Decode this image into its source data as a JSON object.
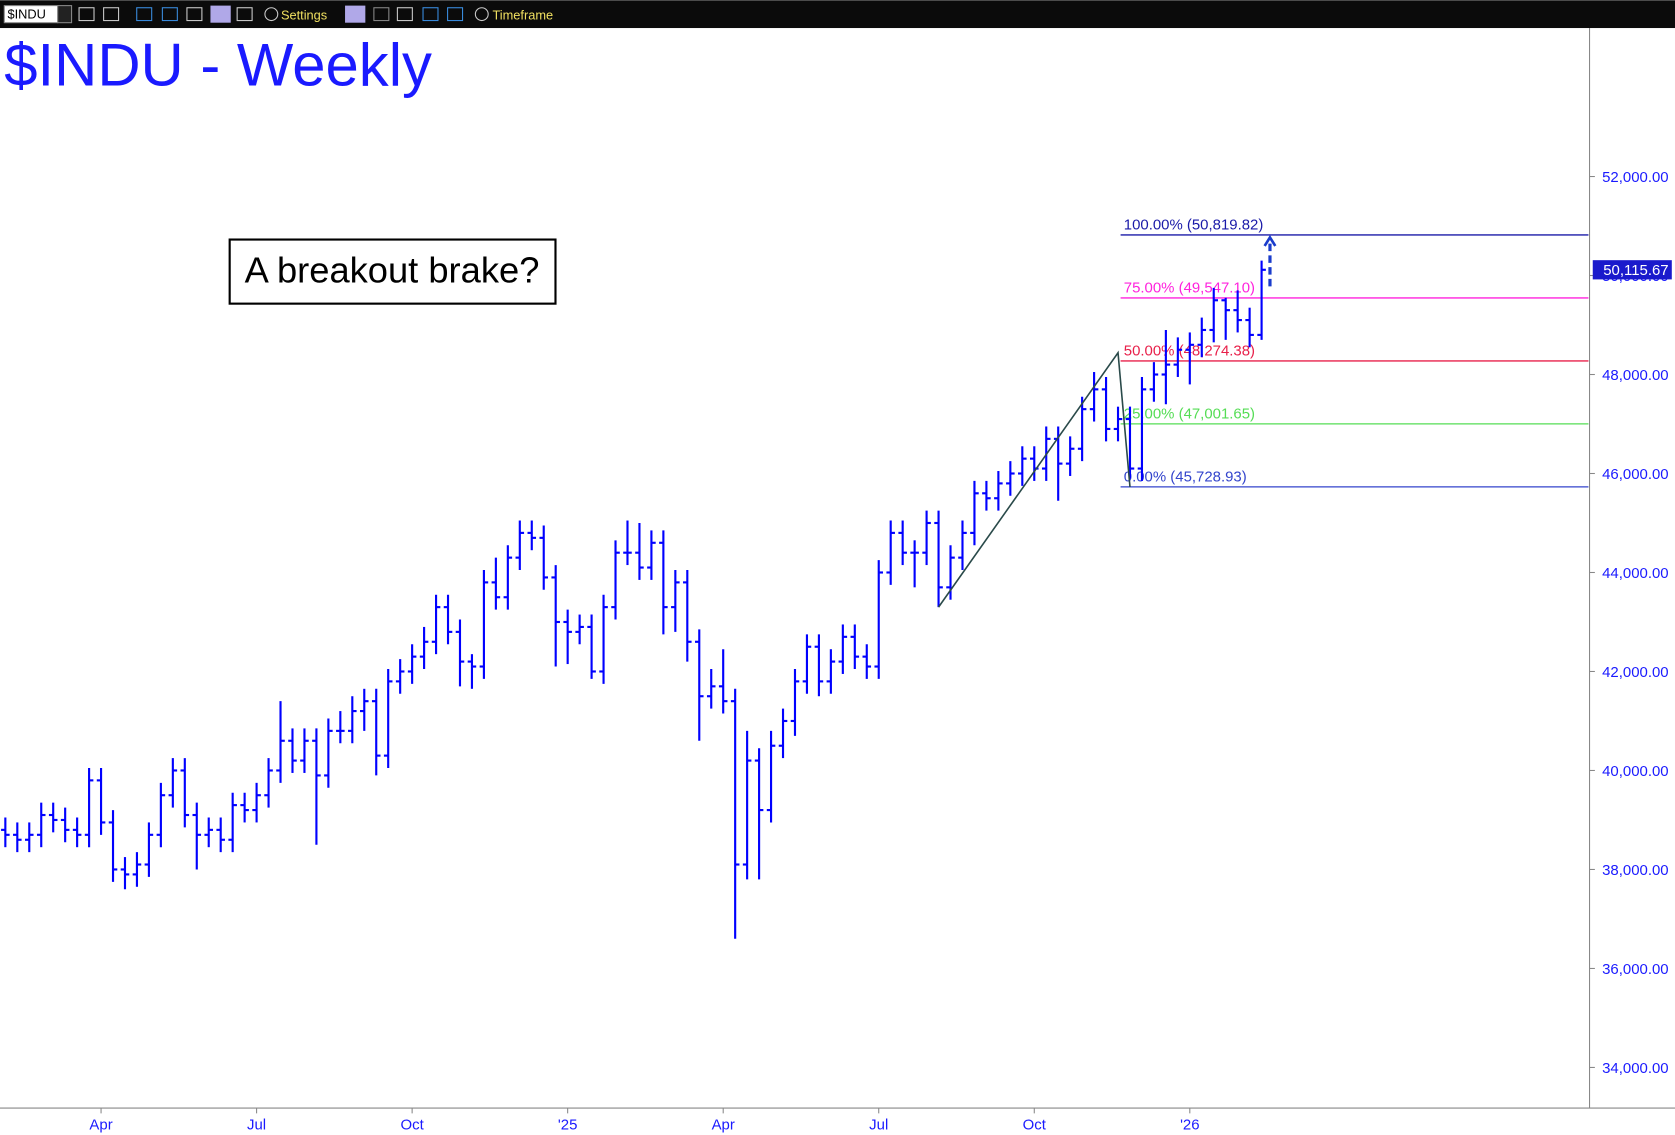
{
  "toolbar": {
    "symbol": "$INDU",
    "settings": "Settings",
    "timeframe": "Timeframe"
  },
  "chart_data": {
    "type": "ohlc",
    "title": "$INDU - Weekly",
    "annotation": "A breakout brake?",
    "color": "#0000ff",
    "categories": [
      null,
      null,
      null,
      null,
      null,
      null,
      null,
      null,
      "Apr",
      null,
      null,
      null,
      null,
      null,
      null,
      null,
      null,
      null,
      null,
      null,
      null,
      "Jul",
      null,
      null,
      null,
      null,
      null,
      null,
      null,
      null,
      null,
      null,
      null,
      null,
      "Oct",
      null,
      null,
      null,
      null,
      null,
      null,
      null,
      null,
      null,
      null,
      null,
      null,
      "'25",
      null,
      null,
      null,
      null,
      null,
      null,
      null,
      null,
      null,
      null,
      null,
      null,
      "Apr",
      null,
      null,
      null,
      null,
      null,
      null,
      null,
      null,
      null,
      null,
      null,
      null,
      "Jul",
      null,
      null,
      null,
      null,
      null,
      null,
      null,
      null,
      null,
      null,
      null,
      null,
      "Oct",
      null,
      null,
      null,
      null,
      null,
      null,
      null,
      null,
      null,
      null,
      null,
      null,
      "'26",
      null,
      null,
      null,
      null,
      null,
      null
    ],
    "open": [
      38800,
      38700,
      38600,
      38700,
      39100,
      39000,
      38800,
      38700,
      39800,
      38950,
      38000,
      37900,
      38100,
      38700,
      39500,
      40000,
      39100,
      38700,
      38800,
      38600,
      39300,
      39200,
      39500,
      40000,
      40600,
      40200,
      40600,
      39900,
      40800,
      40800,
      41200,
      41400,
      40300,
      41800,
      42000,
      42300,
      42600,
      43300,
      42800,
      42200,
      42100,
      43800,
      43500,
      44300,
      44800,
      44700,
      43900,
      43000,
      42800,
      42900,
      42000,
      43300,
      44400,
      44400,
      44100,
      44600,
      43300,
      43800,
      42600,
      41500,
      41700,
      41400,
      38100,
      40200,
      39200,
      40500,
      41000,
      41800,
      42500,
      41800,
      42200,
      42700,
      42300,
      42100,
      44000,
      44800,
      44400,
      44400,
      45000,
      43700,
      44300,
      44800,
      45600,
      45500,
      45800,
      46000,
      46300,
      46100,
      46700,
      46200,
      46500,
      47300,
      47700,
      46900,
      47100,
      46100,
      47700,
      48000,
      48200,
      48500,
      48600,
      48900,
      49500,
      49300,
      49100,
      48800
    ],
    "high": [
      39050,
      38950,
      38950,
      39350,
      39350,
      39250,
      39050,
      40050,
      40050,
      39200,
      38250,
      38350,
      38950,
      39750,
      40250,
      40250,
      39350,
      39050,
      39050,
      39550,
      39550,
      39750,
      40250,
      41400,
      40850,
      40850,
      40850,
      41050,
      41200,
      41500,
      41650,
      41650,
      42050,
      42250,
      42550,
      42900,
      43550,
      43550,
      43050,
      42350,
      44050,
      44300,
      44550,
      45050,
      45050,
      44950,
      44150,
      43250,
      43150,
      43150,
      43550,
      44650,
      45050,
      45000,
      44850,
      44850,
      44050,
      44050,
      42850,
      42050,
      42450,
      41650,
      40800,
      40450,
      40800,
      41250,
      42050,
      42750,
      42750,
      42450,
      42950,
      42950,
      42550,
      44250,
      45050,
      45050,
      44650,
      45250,
      45250,
      44550,
      45050,
      45850,
      45850,
      46050,
      46250,
      46550,
      46550,
      46950,
      46950,
      46750,
      47550,
      48050,
      47950,
      47350,
      47350,
      47950,
      48250,
      48900,
      48750,
      48850,
      49150,
      49750,
      49550,
      49700,
      49350,
      50300
    ],
    "low": [
      38450,
      38350,
      38350,
      38450,
      38750,
      38550,
      38450,
      38450,
      38700,
      37750,
      37600,
      37650,
      37850,
      38450,
      39250,
      38850,
      38000,
      38450,
      38350,
      38350,
      38950,
      38950,
      39250,
      39750,
      39950,
      39950,
      38500,
      39650,
      40550,
      40550,
      40800,
      39900,
      40050,
      41550,
      41750,
      42050,
      42350,
      42550,
      41700,
      41650,
      41850,
      43250,
      43250,
      44050,
      44450,
      43650,
      42100,
      42150,
      42550,
      41850,
      41750,
      43050,
      44150,
      43850,
      43850,
      42750,
      42800,
      42200,
      40600,
      41250,
      41150,
      36600,
      37800,
      37800,
      38950,
      40250,
      40700,
      41550,
      41500,
      41550,
      41950,
      42050,
      41850,
      41850,
      43750,
      44150,
      43700,
      44150,
      43300,
      43450,
      44050,
      44550,
      45250,
      45250,
      45550,
      45750,
      45850,
      45850,
      45450,
      45950,
      46250,
      47050,
      46650,
      46650,
      45900,
      45850,
      47450,
      47400,
      47950,
      47800,
      48350,
      48650,
      48700,
      48850,
      48550,
      48700
    ],
    "close": [
      38700,
      38600,
      38700,
      39100,
      39000,
      38800,
      38700,
      39800,
      38950,
      38000,
      37900,
      38100,
      38700,
      39500,
      40000,
      39100,
      38700,
      38800,
      38600,
      39300,
      39200,
      39500,
      40000,
      40600,
      40200,
      40600,
      39900,
      40800,
      40800,
      41200,
      41400,
      40300,
      41800,
      42000,
      42300,
      42600,
      43300,
      42800,
      42200,
      42100,
      43800,
      43500,
      44300,
      44800,
      44700,
      43900,
      43000,
      42800,
      42900,
      42000,
      43300,
      44400,
      44400,
      44100,
      44600,
      43300,
      43800,
      42600,
      41500,
      41700,
      41400,
      38100,
      40200,
      39200,
      40500,
      41000,
      41800,
      42500,
      41800,
      42200,
      42700,
      42300,
      42100,
      44000,
      44800,
      44400,
      44400,
      45000,
      43700,
      44300,
      44800,
      45600,
      45500,
      45800,
      46000,
      46300,
      46100,
      46700,
      46200,
      46500,
      47300,
      47700,
      46900,
      47100,
      46100,
      47700,
      48000,
      48200,
      48500,
      48600,
      48900,
      49500,
      49300,
      49100,
      48800,
      50115.67
    ],
    "ylim": [
      33180,
      55000
    ],
    "yticks": [
      {
        "value": 34000,
        "label": "34,000.00"
      },
      {
        "value": 36000,
        "label": "36,000.00"
      },
      {
        "value": 38000,
        "label": "38,000.00"
      },
      {
        "value": 40000,
        "label": "40,000.00"
      },
      {
        "value": 42000,
        "label": "42,000.00"
      },
      {
        "value": 44000,
        "label": "44,000.00"
      },
      {
        "value": 46000,
        "label": "46,000.00"
      },
      {
        "value": 48000,
        "label": "48,000.00"
      },
      {
        "value": 50000,
        "label": "50,000.00"
      },
      {
        "value": 52000,
        "label": "52,000.00"
      }
    ],
    "last_label": {
      "value": 50115.67,
      "label": "50,115.67"
    },
    "fib_levels": [
      {
        "value": 50819.82,
        "label": "100.00% (50,819.82)",
        "color": "#1a1aa8"
      },
      {
        "value": 49547.1,
        "label": "75.00% (49,547.10)",
        "color": "#ff22dd"
      },
      {
        "value": 48274.38,
        "label": "50.00% (48,274.38)",
        "color": "#e8204a"
      },
      {
        "value": 47001.65,
        "label": "25.00% (47,001.65)",
        "color": "#55dd55"
      },
      {
        "value": 45728.93,
        "label": "0.00% (45,728.93)",
        "color": "#3344cc"
      }
    ],
    "trend_line": {
      "x": [
        78,
        93,
        94
      ],
      "y": [
        43300,
        48440,
        45729
      ],
      "color": "#2a4a4a"
    },
    "arrow": {
      "x": 105.7,
      "y": [
        49780,
        50770
      ],
      "color": "#1a3ccc"
    }
  }
}
